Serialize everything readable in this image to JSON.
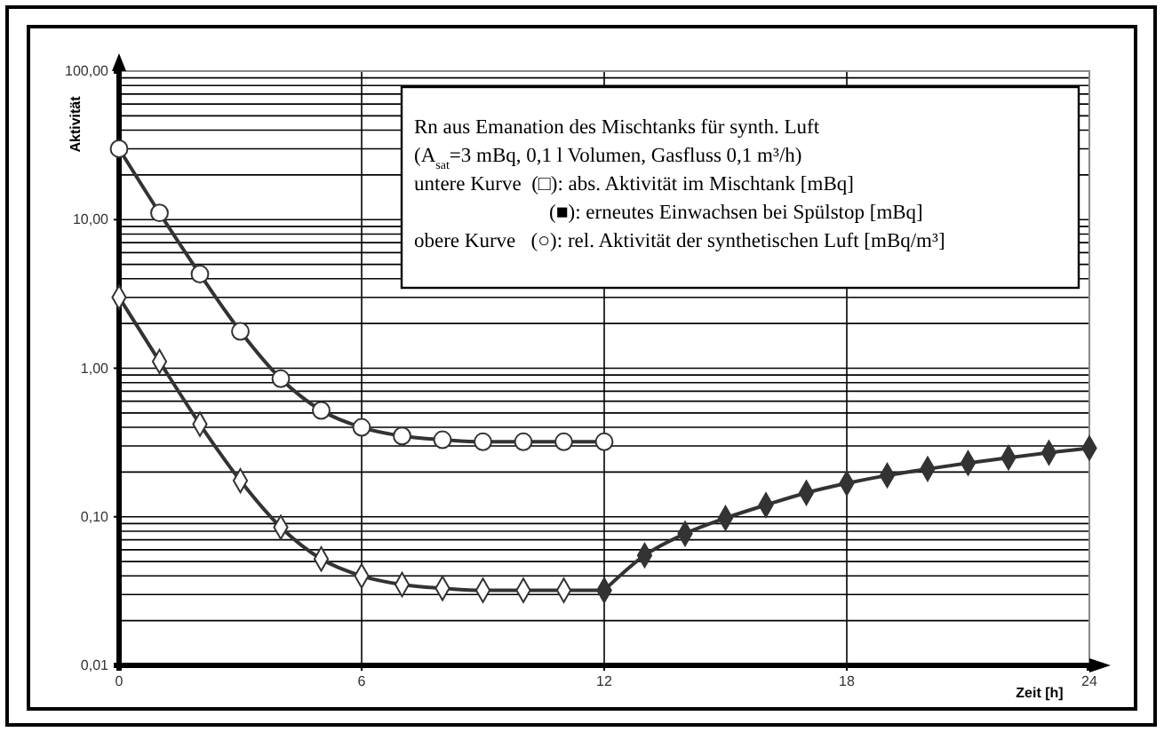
{
  "chart_data": {
    "type": "line",
    "xlabel": "Zeit [h]",
    "ylabel": "Aktivität",
    "x": [
      0,
      1,
      2,
      3,
      4,
      5,
      6,
      7,
      8,
      9,
      10,
      11,
      12
    ],
    "series": [
      {
        "color": "#ffffff",
        "marker": "circle",
        "values": [
          30,
          11.1,
          4.3,
          1.77,
          0.85,
          0.52,
          0.4,
          0.35,
          0.33,
          0.32,
          0.32,
          0.32,
          0.32
        ]
      },
      {
        "color": "#ffffff",
        "marker": "diamond",
        "values": [
          3,
          1.11,
          0.42,
          0.175,
          0.085,
          0.052,
          0.04,
          0.035,
          0.033,
          0.032,
          0.032,
          0.032,
          0.032
        ]
      },
      {
        "color": "#333333",
        "marker": "diamond",
        "x": [
          12,
          13,
          14,
          15,
          16,
          17,
          18,
          19,
          20,
          21,
          22,
          23,
          24
        ],
        "values": [
          0.032,
          0.055,
          0.077,
          0.098,
          0.12,
          0.145,
          0.168,
          0.19,
          0.21,
          0.23,
          0.25,
          0.27,
          0.29
        ]
      }
    ],
    "log": "y",
    "xlim": [
      0,
      24
    ],
    "xticks": [
      0,
      6,
      12,
      18,
      24
    ],
    "ylim": [
      0.01,
      100
    ],
    "yticks": [
      {
        "value": 0.01,
        "label": "0,01"
      },
      {
        "value": 0.1,
        "label": "0,10"
      },
      {
        "value": 1,
        "label": "1,00"
      },
      {
        "value": 10,
        "label": "10,00"
      },
      {
        "value": 100,
        "label": "100,00"
      }
    ],
    "grid": true,
    "line_style": "solid",
    "annotations": [
      "Rn aus Emanation des Mischtanks für synth. Luft",
      "(A$_{sat}$=3 mBq, 0,1 l Volumen, Gasfluss 0,1 m³/h)",
      "untere Kurve  (□): abs. Aktivität im Mischtank [mBq]",
      "(■): erneutes Einwachsen bei Spülstop [mBq]",
      "obere Kurve   (○): rel. Aktivität der synthetischen Luft [mBq/m³]"
    ]
  }
}
